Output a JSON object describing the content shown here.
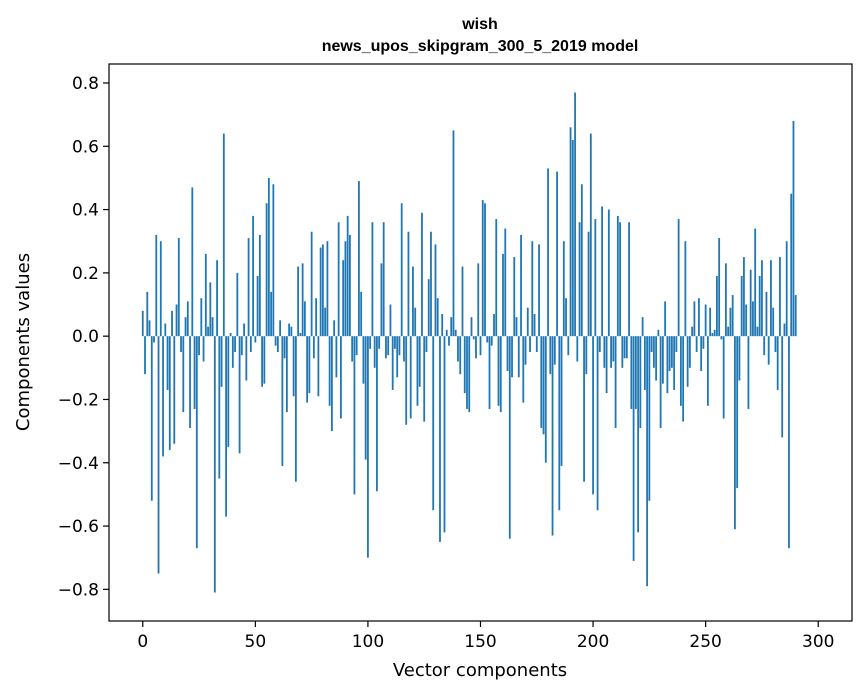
{
  "chart_data": {
    "type": "bar",
    "title": "wish",
    "subtitle": "news_upos_skipgram_300_5_2019 model",
    "xlabel": "Vector components",
    "ylabel": "Components values",
    "xlim": [
      -15,
      315
    ],
    "ylim": [
      -0.9,
      0.86
    ],
    "xticks": [
      0,
      50,
      100,
      150,
      200,
      250,
      300
    ],
    "yticks": [
      -0.8,
      -0.6,
      -0.4,
      -0.2,
      0.0,
      0.2,
      0.4,
      0.6,
      0.8
    ],
    "ytick_labels": [
      "−0.8",
      "−0.6",
      "−0.4",
      "−0.2",
      "0.0",
      "0.2",
      "0.4",
      "0.6",
      "0.8"
    ],
    "bar_color": "#1f77b4",
    "grid": false,
    "values": [
      0.08,
      -0.12,
      0.14,
      0.05,
      -0.52,
      -0.02,
      0.32,
      -0.75,
      0.3,
      -0.38,
      0.04,
      -0.17,
      -0.36,
      0.08,
      -0.34,
      0.1,
      0.31,
      -0.05,
      -0.24,
      0.06,
      0.11,
      -0.29,
      0.47,
      -0.23,
      -0.67,
      -0.06,
      0.12,
      -0.08,
      0.26,
      0.03,
      0.17,
      0.06,
      -0.81,
      0.24,
      -0.45,
      -0.16,
      0.64,
      -0.57,
      -0.35,
      0.01,
      -0.1,
      -0.05,
      0.2,
      -0.37,
      -0.06,
      0.04,
      -0.14,
      0.31,
      -0.05,
      0.38,
      -0.02,
      0.19,
      0.32,
      -0.16,
      -0.15,
      0.42,
      0.5,
      0.14,
      0.48,
      -0.03,
      -0.05,
      0.05,
      -0.41,
      -0.07,
      -0.24,
      0.04,
      0.03,
      -0.19,
      -0.46,
      0.22,
      0.01,
      0.23,
      0.11,
      -0.21,
      -0.18,
      0.33,
      -0.07,
      0.12,
      -0.19,
      0.28,
      0.29,
      0.09,
      0.3,
      -0.22,
      -0.3,
      0.05,
      -0.13,
      0.36,
      -0.26,
      0.24,
      0.3,
      0.38,
      0.32,
      -0.08,
      -0.5,
      -0.06,
      0.49,
      0.14,
      -0.15,
      -0.39,
      -0.7,
      -0.04,
      0.36,
      -0.1,
      -0.49,
      -0.04,
      0.23,
      0.36,
      -0.07,
      -0.06,
      0.1,
      -0.17,
      -0.04,
      -0.13,
      -0.06,
      0.42,
      -0.08,
      -0.28,
      0.33,
      -0.26,
      0.22,
      0.09,
      -0.22,
      -0.16,
      0.39,
      -0.27,
      -0.05,
      0.18,
      0.33,
      -0.55,
      0.29,
      0.12,
      -0.65,
      0.07,
      -0.62,
      0.02,
      -0.03,
      0.06,
      0.65,
      0.02,
      -0.08,
      -0.12,
      0.22,
      -0.18,
      -0.23,
      -0.24,
      0.06,
      -0.01,
      -0.07,
      0.23,
      -0.06,
      0.43,
      0.42,
      -0.02,
      -0.23,
      -0.03,
      0.07,
      0.37,
      -0.22,
      -0.24,
      0.26,
      0.34,
      -0.11,
      -0.64,
      -0.13,
      0.25,
      0.06,
      -0.13,
      0.32,
      -0.21,
      -0.09,
      0.09,
      -0.05,
      0.3,
      0.07,
      -0.05,
      0.29,
      -0.29,
      -0.31,
      -0.4,
      0.53,
      -0.12,
      -0.63,
      -0.09,
      0.52,
      -0.55,
      -0.41,
      0.3,
      0.12,
      -0.06,
      0.66,
      0.62,
      0.77,
      -0.08,
      0.36,
      0.48,
      -0.46,
      -0.12,
      0.33,
      0.64,
      -0.5,
      0.37,
      -0.55,
      -0.05,
      0.41,
      -0.1,
      -0.18,
      0.4,
      -0.1,
      -0.08,
      -0.29,
      0.38,
      0.36,
      -0.1,
      -0.07,
      -0.07,
      0.36,
      -0.23,
      -0.71,
      -0.23,
      -0.62,
      -0.29,
      0.06,
      -0.17,
      -0.79,
      -0.52,
      -0.05,
      -0.1,
      -0.14,
      0.02,
      -0.29,
      -0.15,
      0.11,
      -0.18,
      -0.11,
      -0.1,
      -0.17,
      -0.05,
      0.37,
      -0.22,
      -0.27,
      0.3,
      -0.16,
      -0.1,
      0.03,
      0.11,
      -0.05,
      0.12,
      -0.11,
      -0.04,
      0.1,
      -0.22,
      0.09,
      0.01,
      0.02,
      0.19,
      0.31,
      -0.01,
      -0.26,
      0.23,
      0.03,
      0.09,
      0.13,
      -0.61,
      -0.48,
      -0.14,
      0.19,
      0.25,
      0.1,
      -0.23,
      0.21,
      0.11,
      0.34,
      0.03,
      0.19,
      0.24,
      -0.06,
      0.14,
      -0.09,
      0.24,
      0.09,
      -0.05,
      -0.17,
      0.25,
      -0.32,
      0.04,
      0.3,
      -0.67,
      0.45,
      0.68,
      0.13
    ]
  }
}
